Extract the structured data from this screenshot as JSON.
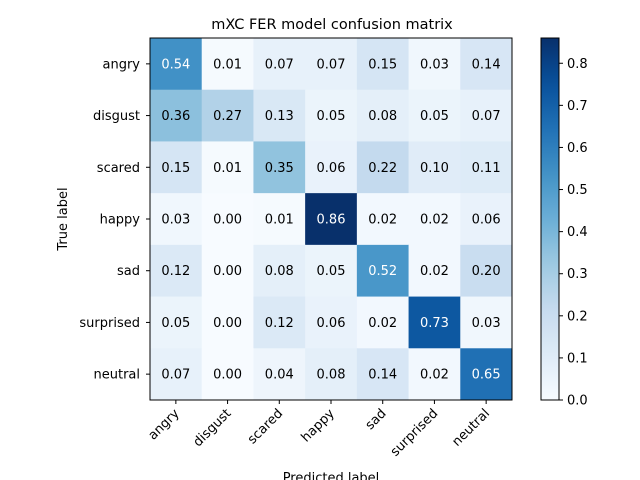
{
  "chart_data": {
    "type": "heatmap",
    "title": "mXC FER model confusion matrix",
    "xlabel": "Predicted label",
    "ylabel": "True label",
    "x_categories": [
      "angry",
      "disgust",
      "scared",
      "happy",
      "sad",
      "surprised",
      "neutral"
    ],
    "y_categories": [
      "angry",
      "disgust",
      "scared",
      "happy",
      "sad",
      "surprised",
      "neutral"
    ],
    "values": [
      [
        0.54,
        0.01,
        0.07,
        0.07,
        0.15,
        0.03,
        0.14
      ],
      [
        0.36,
        0.27,
        0.13,
        0.05,
        0.08,
        0.05,
        0.07
      ],
      [
        0.15,
        0.01,
        0.35,
        0.06,
        0.22,
        0.1,
        0.11
      ],
      [
        0.03,
        0.0,
        0.01,
        0.86,
        0.02,
        0.02,
        0.06
      ],
      [
        0.12,
        0.0,
        0.08,
        0.05,
        0.52,
        0.02,
        0.2
      ],
      [
        0.05,
        0.0,
        0.12,
        0.06,
        0.02,
        0.73,
        0.03
      ],
      [
        0.07,
        0.0,
        0.04,
        0.08,
        0.14,
        0.02,
        0.65
      ]
    ],
    "colormap": "Blues",
    "vmin": 0.0,
    "vmax": 0.86,
    "colorbar": {
      "ticks": [
        0.0,
        0.1,
        0.2,
        0.3,
        0.4,
        0.5,
        0.6,
        0.7,
        0.8
      ],
      "tick_labels": [
        "0.0",
        "0.1",
        "0.2",
        "0.3",
        "0.4",
        "0.5",
        "0.6",
        "0.7",
        "0.8"
      ]
    },
    "x_tick_rotation": 45,
    "grid": false
  }
}
